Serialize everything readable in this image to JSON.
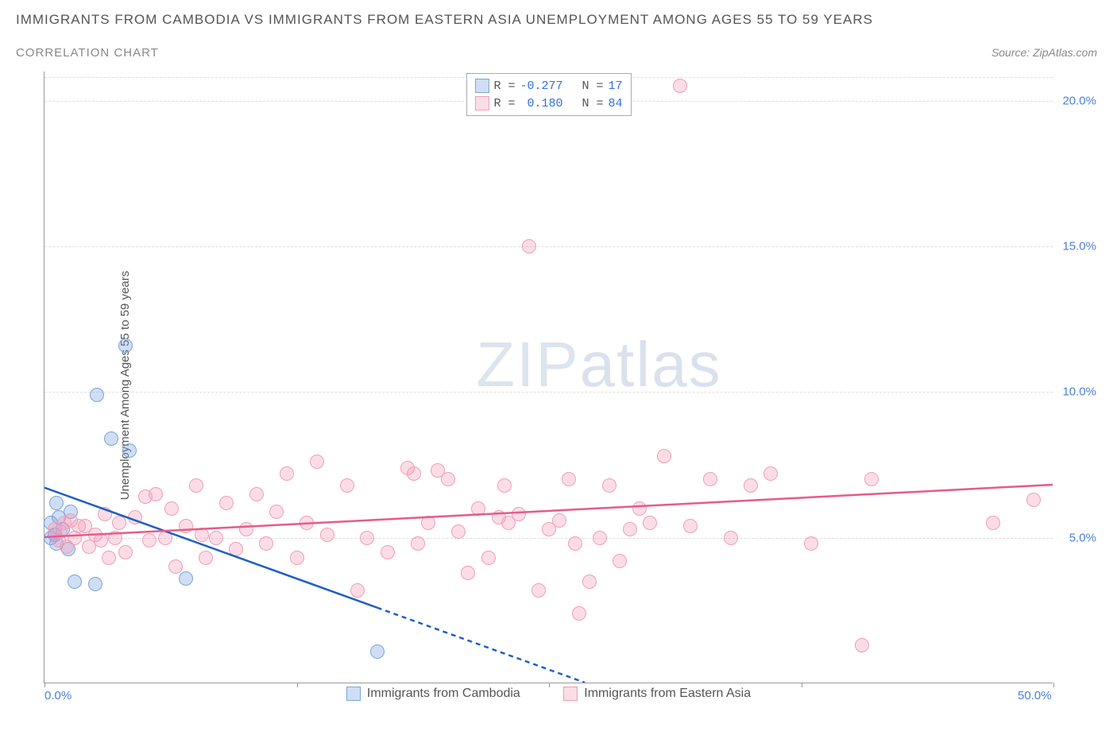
{
  "title": "IMMIGRANTS FROM CAMBODIA VS IMMIGRANTS FROM EASTERN ASIA UNEMPLOYMENT AMONG AGES 55 TO 59 YEARS",
  "subtitle": "CORRELATION CHART",
  "source_prefix": "Source: ",
  "source_name": "ZipAtlas.com",
  "ylabel": "Unemployment Among Ages 55 to 59 years",
  "watermark_zip": "ZIP",
  "watermark_atlas": "atlas",
  "chart": {
    "type": "scatter",
    "xlim": [
      0,
      50
    ],
    "ylim": [
      0,
      21
    ],
    "x_ticks": [
      0,
      12.5,
      25,
      37.5,
      50
    ],
    "x_tick_labels": {
      "0": "0.0%",
      "50": "50.0%"
    },
    "y_ticks": [
      5,
      10,
      15,
      20
    ],
    "y_tick_label_suffix": ".0%",
    "grid_color": "#dddddd",
    "axis_color": "#999999",
    "background_color": "#ffffff",
    "series": [
      {
        "id": "cambodia",
        "label": "Immigrants from Cambodia",
        "R": "-0.277",
        "N": "17",
        "fill": "rgba(120,160,225,0.35)",
        "stroke": "#7aa5de",
        "line_color": "#1f5fc2",
        "trend": {
          "y_at_x0": 6.7,
          "y_at_x50": -5.8,
          "solid_until_x": 16.5
        },
        "points": [
          {
            "x": 0.3,
            "y": 5.0
          },
          {
            "x": 0.3,
            "y": 5.5
          },
          {
            "x": 0.5,
            "y": 5.1
          },
          {
            "x": 0.6,
            "y": 6.2
          },
          {
            "x": 0.6,
            "y": 4.8
          },
          {
            "x": 0.7,
            "y": 5.7
          },
          {
            "x": 0.9,
            "y": 5.3
          },
          {
            "x": 1.2,
            "y": 4.6
          },
          {
            "x": 1.3,
            "y": 5.9
          },
          {
            "x": 1.5,
            "y": 3.5
          },
          {
            "x": 2.5,
            "y": 3.4
          },
          {
            "x": 2.6,
            "y": 9.9
          },
          {
            "x": 3.3,
            "y": 8.4
          },
          {
            "x": 4.0,
            "y": 11.6
          },
          {
            "x": 4.2,
            "y": 8.0
          },
          {
            "x": 7.0,
            "y": 3.6
          },
          {
            "x": 16.5,
            "y": 1.1
          }
        ]
      },
      {
        "id": "eastern_asia",
        "label": "Immigrants from Eastern Asia",
        "R": "0.180",
        "N": "84",
        "fill": "rgba(245,150,180,0.32)",
        "stroke": "#f09eb5",
        "line_color": "#e75a8c",
        "trend": {
          "y_at_x0": 5.0,
          "y_at_x50": 6.8,
          "solid_until_x": 50
        },
        "points": [
          {
            "x": 0.5,
            "y": 5.3
          },
          {
            "x": 0.7,
            "y": 4.9
          },
          {
            "x": 0.8,
            "y": 5.2
          },
          {
            "x": 1.0,
            "y": 5.5
          },
          {
            "x": 1.1,
            "y": 4.7
          },
          {
            "x": 1.3,
            "y": 5.6
          },
          {
            "x": 1.5,
            "y": 5.0
          },
          {
            "x": 1.7,
            "y": 5.4
          },
          {
            "x": 2.0,
            "y": 5.4
          },
          {
            "x": 2.2,
            "y": 4.7
          },
          {
            "x": 2.5,
            "y": 5.1
          },
          {
            "x": 2.8,
            "y": 4.9
          },
          {
            "x": 3.0,
            "y": 5.8
          },
          {
            "x": 3.2,
            "y": 4.3
          },
          {
            "x": 3.5,
            "y": 5.0
          },
          {
            "x": 3.7,
            "y": 5.5
          },
          {
            "x": 4.0,
            "y": 4.5
          },
          {
            "x": 4.5,
            "y": 5.7
          },
          {
            "x": 5.0,
            "y": 6.4
          },
          {
            "x": 5.2,
            "y": 4.9
          },
          {
            "x": 5.5,
            "y": 6.5
          },
          {
            "x": 6.0,
            "y": 5.0
          },
          {
            "x": 6.3,
            "y": 6.0
          },
          {
            "x": 6.5,
            "y": 4.0
          },
          {
            "x": 7.0,
            "y": 5.4
          },
          {
            "x": 7.5,
            "y": 6.8
          },
          {
            "x": 7.8,
            "y": 5.1
          },
          {
            "x": 8.0,
            "y": 4.3
          },
          {
            "x": 8.5,
            "y": 5.0
          },
          {
            "x": 9.0,
            "y": 6.2
          },
          {
            "x": 9.5,
            "y": 4.6
          },
          {
            "x": 10.0,
            "y": 5.3
          },
          {
            "x": 10.5,
            "y": 6.5
          },
          {
            "x": 11.0,
            "y": 4.8
          },
          {
            "x": 11.5,
            "y": 5.9
          },
          {
            "x": 12.0,
            "y": 7.2
          },
          {
            "x": 12.5,
            "y": 4.3
          },
          {
            "x": 13.0,
            "y": 5.5
          },
          {
            "x": 13.5,
            "y": 7.6
          },
          {
            "x": 14.0,
            "y": 5.1
          },
          {
            "x": 15.0,
            "y": 6.8
          },
          {
            "x": 15.5,
            "y": 3.2
          },
          {
            "x": 16.0,
            "y": 5.0
          },
          {
            "x": 17.0,
            "y": 4.5
          },
          {
            "x": 18.0,
            "y": 7.4
          },
          {
            "x": 18.3,
            "y": 7.2
          },
          {
            "x": 18.5,
            "y": 4.8
          },
          {
            "x": 19.0,
            "y": 5.5
          },
          {
            "x": 19.5,
            "y": 7.3
          },
          {
            "x": 20.0,
            "y": 7.0
          },
          {
            "x": 20.5,
            "y": 5.2
          },
          {
            "x": 21.0,
            "y": 3.8
          },
          {
            "x": 21.5,
            "y": 6.0
          },
          {
            "x": 22.0,
            "y": 4.3
          },
          {
            "x": 22.5,
            "y": 5.7
          },
          {
            "x": 22.8,
            "y": 6.8
          },
          {
            "x": 23.0,
            "y": 5.5
          },
          {
            "x": 23.5,
            "y": 5.8
          },
          {
            "x": 24.0,
            "y": 15.0
          },
          {
            "x": 24.5,
            "y": 3.2
          },
          {
            "x": 25.0,
            "y": 5.3
          },
          {
            "x": 25.5,
            "y": 5.6
          },
          {
            "x": 26.0,
            "y": 7.0
          },
          {
            "x": 26.3,
            "y": 4.8
          },
          {
            "x": 26.5,
            "y": 2.4
          },
          {
            "x": 27.0,
            "y": 3.5
          },
          {
            "x": 27.5,
            "y": 5.0
          },
          {
            "x": 28.0,
            "y": 6.8
          },
          {
            "x": 28.5,
            "y": 4.2
          },
          {
            "x": 29.0,
            "y": 5.3
          },
          {
            "x": 29.5,
            "y": 6.0
          },
          {
            "x": 30.0,
            "y": 5.5
          },
          {
            "x": 30.7,
            "y": 7.8
          },
          {
            "x": 31.5,
            "y": 20.5
          },
          {
            "x": 32.0,
            "y": 5.4
          },
          {
            "x": 33.0,
            "y": 7.0
          },
          {
            "x": 34.0,
            "y": 5.0
          },
          {
            "x": 35.0,
            "y": 6.8
          },
          {
            "x": 36.0,
            "y": 7.2
          },
          {
            "x": 38.0,
            "y": 4.8
          },
          {
            "x": 40.5,
            "y": 1.3
          },
          {
            "x": 41.0,
            "y": 7.0
          },
          {
            "x": 47.0,
            "y": 5.5
          },
          {
            "x": 49.0,
            "y": 6.3
          }
        ]
      }
    ]
  }
}
